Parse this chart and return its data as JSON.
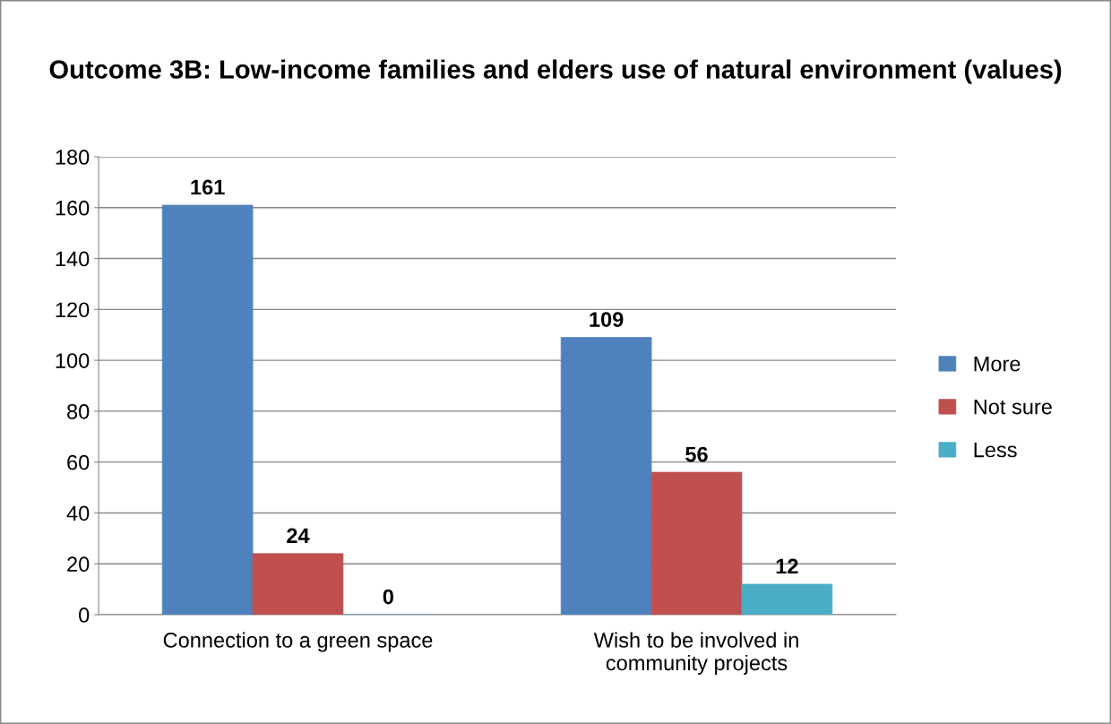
{
  "chart_data": {
    "type": "bar",
    "title": "Outcome 3B: Low-income families and elders use of natural environment (values)",
    "categories": [
      "Connection to a green space",
      "Wish to be involved in\ncommunity projects"
    ],
    "series": [
      {
        "name": "More",
        "color": "#4f81bd",
        "values": [
          161,
          109
        ]
      },
      {
        "name": "Not sure",
        "color": "#c0504d",
        "values": [
          24,
          56
        ]
      },
      {
        "name": "Less",
        "color": "#4bacc6",
        "values": [
          0,
          12
        ]
      }
    ],
    "ylim": [
      0,
      180
    ],
    "yticks": [
      0,
      20,
      40,
      60,
      80,
      100,
      120,
      140,
      160,
      180
    ],
    "grid": "y",
    "legend": "right",
    "data_labels": true
  }
}
